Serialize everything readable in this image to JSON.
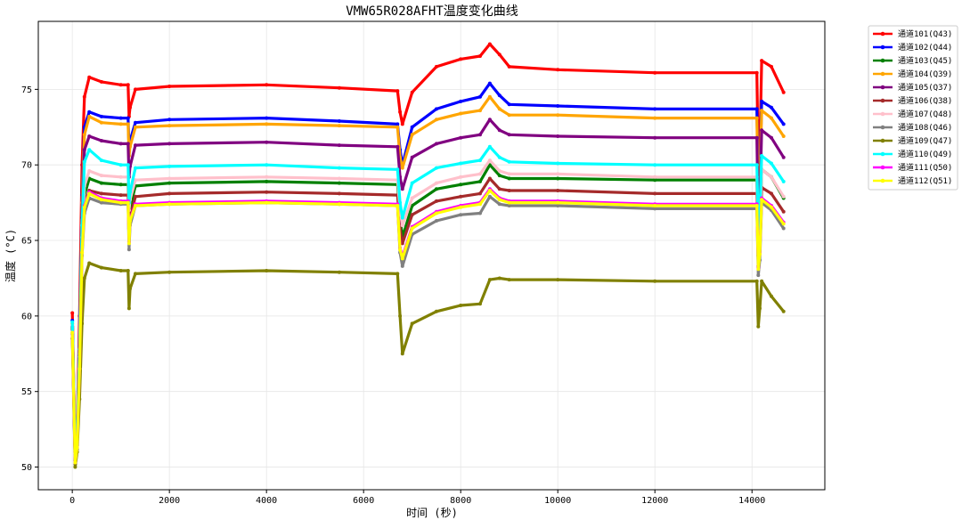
{
  "chart_data": {
    "type": "line",
    "title": "VMW65R028AFHT温度变化曲线",
    "xlabel": "时间 (秒)",
    "ylabel": "温度 (°C)",
    "xlim": [
      -700,
      15500
    ],
    "ylim": [
      48.5,
      79.5
    ],
    "xticks": [
      0,
      2000,
      4000,
      6000,
      8000,
      10000,
      12000,
      14000
    ],
    "yticks": [
      50,
      55,
      60,
      65,
      70,
      75
    ],
    "grid": true,
    "legend_position": "outside-top-right",
    "series": [
      {
        "name": "通道101(Q43)",
        "color": "#ff0000",
        "x": [
          0,
          60,
          100,
          150,
          200,
          250,
          350,
          600,
          1000,
          1150,
          1170,
          1190,
          1300,
          2000,
          4000,
          5500,
          6700,
          6750,
          6800,
          7000,
          7500,
          8000,
          8400,
          8600,
          8800,
          9000,
          10000,
          12000,
          14100,
          14130,
          14160,
          14200,
          14400,
          14650
        ],
        "y": [
          60.2,
          51,
          52.5,
          60,
          70,
          74.5,
          75.8,
          75.5,
          75.3,
          75.3,
          73.2,
          73.8,
          75,
          75.2,
          75.3,
          75.1,
          74.9,
          73.5,
          72.7,
          74.8,
          76.5,
          77,
          77.2,
          78,
          77.3,
          76.5,
          76.3,
          76.1,
          76.1,
          70,
          71,
          76.9,
          76.5,
          74.8
        ]
      },
      {
        "name": "通道102(Q44)",
        "color": "#0000ff",
        "x": [
          0,
          60,
          100,
          150,
          200,
          250,
          350,
          600,
          1000,
          1150,
          1170,
          1190,
          1300,
          2000,
          4000,
          5500,
          6700,
          6750,
          6800,
          7000,
          7500,
          8000,
          8400,
          8600,
          8800,
          9000,
          10000,
          12000,
          14100,
          14130,
          14160,
          14200,
          14400,
          14650
        ],
        "y": [
          59.7,
          50.8,
          52,
          58,
          68,
          72.5,
          73.5,
          73.2,
          73.1,
          73.1,
          71,
          71.6,
          72.8,
          73,
          73.1,
          72.9,
          72.7,
          71,
          70,
          72.5,
          73.7,
          74.2,
          74.5,
          75.4,
          74.6,
          74,
          73.9,
          73.7,
          73.7,
          68,
          69,
          74.2,
          73.8,
          72.7
        ]
      },
      {
        "name": "通道103(Q45)",
        "color": "#008000",
        "x": [
          0,
          60,
          100,
          150,
          200,
          250,
          350,
          600,
          1000,
          1150,
          1170,
          1190,
          1300,
          2000,
          4000,
          5500,
          6700,
          6750,
          6800,
          7000,
          7500,
          8000,
          8400,
          8600,
          8800,
          9000,
          10000,
          12000,
          14100,
          14130,
          14160,
          14200,
          14400,
          14650
        ],
        "y": [
          59.2,
          50.5,
          51.5,
          57,
          65,
          68,
          69.1,
          68.8,
          68.7,
          68.7,
          66.5,
          67.2,
          68.6,
          68.8,
          68.9,
          68.8,
          68.7,
          66.5,
          65.2,
          67.3,
          68.4,
          68.7,
          68.9,
          70,
          69.3,
          69.1,
          69.1,
          69,
          69,
          64,
          65,
          69.7,
          69.2,
          67.8
        ]
      },
      {
        "name": "通道104(Q39)",
        "color": "#ffa500",
        "x": [
          0,
          60,
          100,
          150,
          200,
          250,
          350,
          600,
          1000,
          1150,
          1170,
          1190,
          1300,
          2000,
          4000,
          5500,
          6700,
          6750,
          6800,
          7000,
          7500,
          8000,
          8400,
          8600,
          8800,
          9000,
          10000,
          12000,
          14100,
          14130,
          14160,
          14200,
          14400,
          14650
        ],
        "y": [
          59.5,
          50.7,
          51.8,
          57.5,
          67.5,
          72,
          73.2,
          72.8,
          72.7,
          72.7,
          70.6,
          71.2,
          72.5,
          72.6,
          72.7,
          72.6,
          72.5,
          70.5,
          69.8,
          72,
          73,
          73.4,
          73.6,
          74.5,
          73.7,
          73.3,
          73.3,
          73.1,
          73.1,
          67.8,
          68.8,
          73.6,
          73.1,
          71.9
        ]
      },
      {
        "name": "通道105(Q37)",
        "color": "#800080",
        "x": [
          0,
          60,
          100,
          150,
          200,
          250,
          350,
          600,
          1000,
          1150,
          1170,
          1190,
          1300,
          2000,
          4000,
          5500,
          6700,
          6750,
          6800,
          7000,
          7500,
          8000,
          8400,
          8600,
          8800,
          9000,
          10000,
          12000,
          14100,
          14130,
          14160,
          14200,
          14400,
          14650
        ],
        "y": [
          59.3,
          50.6,
          51.6,
          57.2,
          66.5,
          71,
          71.9,
          71.6,
          71.4,
          71.4,
          69.2,
          69.9,
          71.3,
          71.4,
          71.5,
          71.3,
          71.2,
          69.2,
          68.4,
          70.5,
          71.4,
          71.8,
          72,
          73,
          72.3,
          72,
          71.9,
          71.8,
          71.8,
          66.3,
          67.3,
          72.3,
          71.8,
          70.5
        ]
      },
      {
        "name": "通道106(Q38)",
        "color": "#a52a2a",
        "x": [
          0,
          60,
          100,
          150,
          200,
          250,
          350,
          600,
          1000,
          1150,
          1170,
          1190,
          1300,
          2000,
          4000,
          5500,
          6700,
          6750,
          6800,
          7000,
          7500,
          8000,
          8400,
          8600,
          8800,
          9000,
          10000,
          12000,
          14100,
          14130,
          14160,
          14200,
          14400,
          14650
        ],
        "y": [
          59.1,
          50.4,
          51.4,
          56.8,
          64.5,
          67.3,
          68.3,
          68.1,
          68,
          68,
          65.8,
          66.5,
          67.9,
          68.1,
          68.2,
          68.1,
          68,
          65.8,
          64.8,
          66.7,
          67.6,
          67.9,
          68.1,
          69.1,
          68.4,
          68.3,
          68.3,
          68.1,
          68.1,
          63.3,
          64.3,
          68.5,
          68.1,
          66.9
        ]
      },
      {
        "name": "通道107(Q48)",
        "color": "#ffc0cb",
        "x": [
          0,
          60,
          100,
          150,
          200,
          250,
          350,
          600,
          1000,
          1150,
          1170,
          1190,
          1300,
          2000,
          4000,
          5500,
          6700,
          6750,
          6800,
          7000,
          7500,
          8000,
          8400,
          8600,
          8800,
          9000,
          10000,
          12000,
          14100,
          14130,
          14160,
          14200,
          14400,
          14650
        ],
        "y": [
          59.4,
          50.6,
          51.7,
          57.3,
          65.2,
          68.6,
          69.6,
          69.3,
          69.2,
          69.2,
          67,
          67.7,
          69,
          69.1,
          69.2,
          69.1,
          69,
          67,
          66,
          67.8,
          68.8,
          69.2,
          69.4,
          70.3,
          69.6,
          69.4,
          69.4,
          69.2,
          69.2,
          64.4,
          65.4,
          69.7,
          69.2,
          67.9
        ]
      },
      {
        "name": "通道108(Q46)",
        "color": "#808080",
        "x": [
          0,
          60,
          100,
          150,
          200,
          250,
          350,
          600,
          1000,
          1150,
          1170,
          1190,
          1300,
          2000,
          4000,
          5500,
          6700,
          6750,
          6800,
          7000,
          7500,
          8000,
          8400,
          8600,
          8800,
          9000,
          10000,
          12000,
          14100,
          14130,
          14160,
          14200,
          14400,
          14650
        ],
        "y": [
          58.8,
          50.2,
          51.2,
          56.2,
          64,
          66.8,
          67.8,
          67.5,
          67.4,
          67.4,
          64.4,
          66,
          67.3,
          67.4,
          67.5,
          67.4,
          67.3,
          64.2,
          63.3,
          65.4,
          66.3,
          66.7,
          66.8,
          67.9,
          67.4,
          67.3,
          67.3,
          67.1,
          67.1,
          62.7,
          63.7,
          67.5,
          67,
          65.8
        ]
      },
      {
        "name": "通道109(Q47)",
        "color": "#808000",
        "x": [
          0,
          60,
          100,
          150,
          200,
          250,
          350,
          600,
          1000,
          1150,
          1170,
          1190,
          1300,
          2000,
          4000,
          5500,
          6700,
          6750,
          6800,
          7000,
          7500,
          8000,
          8400,
          8600,
          8800,
          9000,
          10000,
          12000,
          14100,
          14130,
          14160,
          14200,
          14400,
          14650
        ],
        "y": [
          58.5,
          50,
          51,
          54.5,
          59.5,
          62.5,
          63.5,
          63.2,
          63,
          63,
          60.5,
          61.8,
          62.8,
          62.9,
          63,
          62.9,
          62.8,
          60,
          57.5,
          59.5,
          60.3,
          60.7,
          60.8,
          62.4,
          62.5,
          62.4,
          62.4,
          62.3,
          62.3,
          59.3,
          60.5,
          62.3,
          61.3,
          60.3
        ]
      },
      {
        "name": "通道110(Q49)",
        "color": "#00ffff",
        "x": [
          0,
          60,
          100,
          150,
          200,
          250,
          350,
          600,
          1000,
          1150,
          1170,
          1190,
          1300,
          2000,
          4000,
          5500,
          6700,
          6750,
          6800,
          7000,
          7500,
          8000,
          8400,
          8600,
          8800,
          9000,
          10000,
          12000,
          14100,
          14130,
          14160,
          14200,
          14400,
          14650
        ],
        "y": [
          59.6,
          50.8,
          51.9,
          57.8,
          66,
          70.2,
          71,
          70.3,
          70,
          70,
          67.5,
          68.2,
          69.8,
          69.9,
          70,
          69.8,
          69.7,
          67.5,
          66.5,
          68.8,
          69.8,
          70.1,
          70.3,
          71.2,
          70.5,
          70.2,
          70.1,
          70,
          70,
          65.8,
          66.8,
          70.6,
          70.1,
          68.9
        ]
      },
      {
        "name": "通道111(Q50)",
        "color": "#ff00ff",
        "x": [
          0,
          60,
          100,
          150,
          200,
          250,
          350,
          600,
          1000,
          1150,
          1170,
          1190,
          1300,
          2000,
          4000,
          5500,
          6700,
          6750,
          6800,
          7000,
          7500,
          8000,
          8400,
          8600,
          8800,
          9000,
          10000,
          12000,
          14100,
          14130,
          14160,
          14200,
          14400,
          14650
        ],
        "y": [
          58.9,
          50.3,
          51.3,
          56.5,
          64.2,
          67.3,
          68.2,
          67.8,
          67.6,
          67.6,
          64.9,
          66.4,
          67.4,
          67.5,
          67.6,
          67.5,
          67.4,
          64.5,
          63.9,
          65.9,
          66.9,
          67.3,
          67.5,
          68.4,
          67.8,
          67.6,
          67.6,
          67.4,
          67.4,
          63.2,
          64.2,
          67.8,
          67.3,
          66.2
        ]
      },
      {
        "name": "通道112(Q51)",
        "color": "#ffff00",
        "x": [
          0,
          60,
          100,
          150,
          200,
          250,
          350,
          600,
          1000,
          1150,
          1170,
          1190,
          1300,
          2000,
          4000,
          5500,
          6700,
          6750,
          6800,
          7000,
          7500,
          8000,
          8400,
          8600,
          8800,
          9000,
          10000,
          12000,
          14100,
          14130,
          14160,
          14200,
          14400,
          14650
        ],
        "y": [
          58.9,
          50.3,
          51.3,
          56.5,
          64.2,
          67.2,
          68.1,
          67.7,
          67.5,
          67.5,
          64.8,
          66.3,
          67.3,
          67.4,
          67.5,
          67.4,
          67.3,
          64.4,
          63.8,
          65.8,
          66.8,
          67.2,
          67.4,
          68.3,
          67.7,
          67.5,
          67.5,
          67.3,
          67.3,
          63.1,
          64.1,
          67.7,
          67.2,
          66.1
        ]
      }
    ]
  }
}
